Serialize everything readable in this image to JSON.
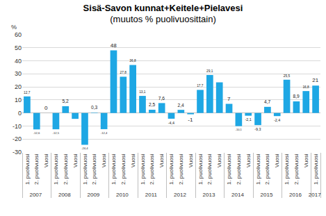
{
  "chart_data": {
    "type": "bar",
    "title": "Sisä-Savon kunnat+Keitele+Pielavesi",
    "subtitle": "(muutos % puolivuosittain)",
    "ylabel": "%",
    "categories": [
      "1. puolivuosi",
      "2. puolivuosi",
      "Vuosi",
      "1. puolivuosi",
      "2. puolivuosi",
      "Vuosi",
      "1. puolivuosi",
      "2. puolivuosi",
      "Vuosi",
      "1. puolivuosi",
      "2. puolivuosi",
      "Vuosi",
      "1. puolivuosi",
      "2. puolivuosi",
      "Vuosi",
      "1. puolivuosi",
      "2. puolivuosi",
      "Vuosi",
      "1. puolivuosi",
      "2. puolivuosi",
      "Vuosi",
      "1. puolivuosi",
      "2. puolivuosi",
      "Vuosi",
      "1. puolivuosi",
      "2. puolivuosi",
      "Vuosi",
      "1. puolivuosi",
      "2. puolivuosi",
      "Vuosi",
      "1. puolivuosi"
    ],
    "years": [
      "2007",
      "2007",
      "2007",
      "2008",
      "2008",
      "2008",
      "2009",
      "2009",
      "2009",
      "2010",
      "2010",
      "2010",
      "2011",
      "2011",
      "2011",
      "2012",
      "2012",
      "2012",
      "2013",
      "2013",
      "2013",
      "2014",
      "2014",
      "2014",
      "2015",
      "2015",
      "2015",
      "2016",
      "2016",
      "2016",
      "2017"
    ],
    "values": [
      12.7,
      -12.6,
      0,
      -12.5,
      5.2,
      -4.5,
      -24.4,
      0.3,
      -12.4,
      48,
      27.8,
      36.8,
      13.1,
      2.5,
      7.6,
      -4.4,
      2.4,
      -1,
      17.7,
      29.1,
      23.5,
      7,
      -10.1,
      -2.1,
      -9.3,
      4.7,
      -2.4,
      25.5,
      8.9,
      16.8,
      21
    ],
    "value_labels": [
      "12,7",
      "-12,6",
      "0",
      "-12,5",
      "5,2",
      null,
      "-24,4",
      "0,3",
      "-12,4",
      "48",
      "27,8",
      "36,8",
      "13,1",
      "2,5",
      "7,6",
      "-4,4",
      "2,4",
      "-1",
      "17,7",
      "29,1",
      null,
      "7",
      "-10,1",
      "-2,1",
      "-9,3",
      "4,7",
      "-2,4",
      "25,5",
      "8,9",
      "16,8",
      "21"
    ],
    "color": "#1ea7e4",
    "ylim": [
      -30,
      60
    ],
    "yticks": [
      -30,
      -20,
      -10,
      0,
      10,
      20,
      30,
      40,
      50,
      60
    ],
    "grid": true,
    "data_labels": true
  }
}
